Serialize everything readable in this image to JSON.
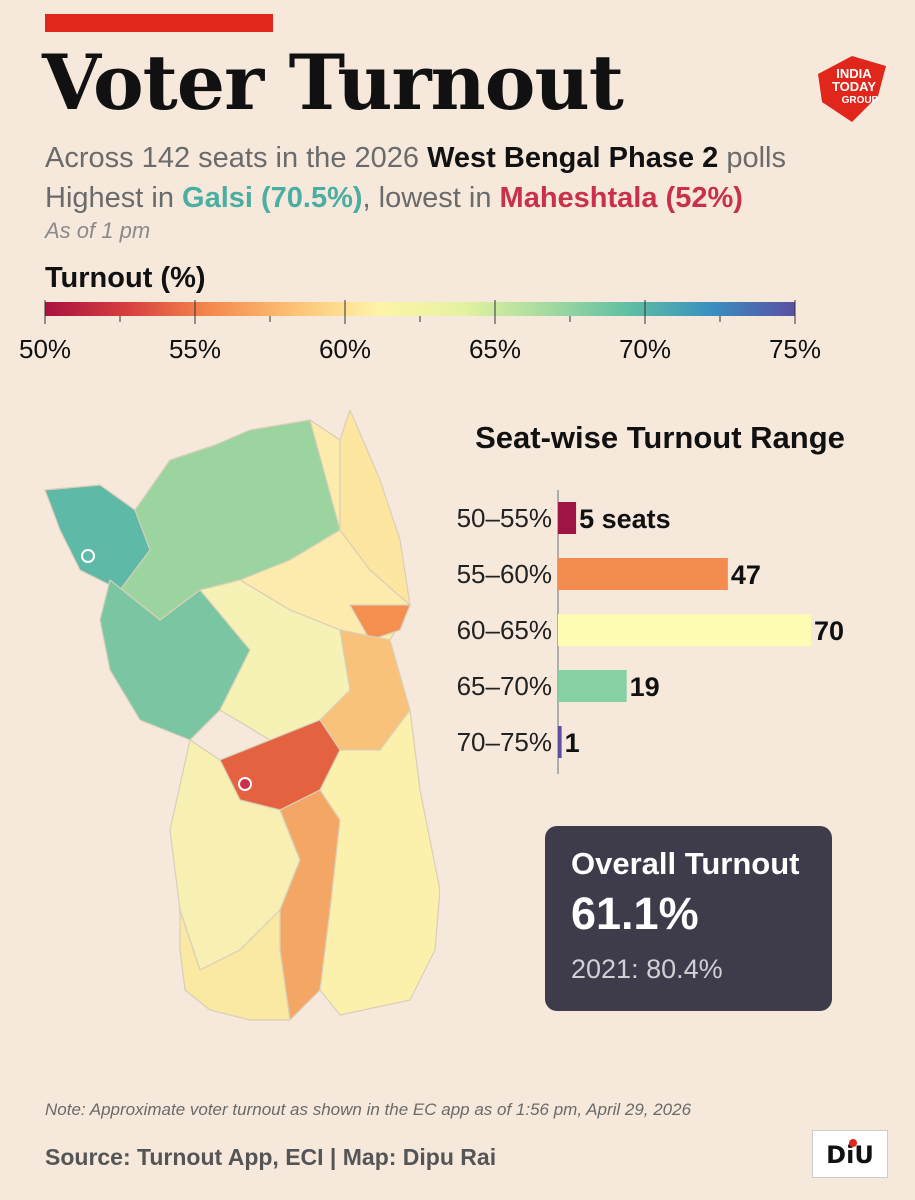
{
  "header": {
    "title": "Voter Turnout",
    "sub1_a": "Across 142 seats in the 2026 ",
    "sub1_b": "West Bengal Phase 2",
    "sub1_c": " polls",
    "sub2_a": "Highest in ",
    "sub2_b": "Galsi (70.5%)",
    "sub2_c": ", lowest in ",
    "sub2_d": "Maheshtala (52%)",
    "as_of": "As of 1 pm"
  },
  "logo": {
    "line1": "INDIA",
    "line2": "TODAY",
    "line3": "GROUP"
  },
  "legend": {
    "title": "Turnout (%)",
    "ticks": [
      "50%",
      "55%",
      "60%",
      "65%",
      "70%",
      "75%"
    ],
    "colors": [
      "#a8123f",
      "#d7403f",
      "#f58a4d",
      "#fdc275",
      "#fef4a8",
      "#e4f3a0",
      "#a6dba0",
      "#5fbfa3",
      "#3a8fc0",
      "#5a4fa2"
    ]
  },
  "chart_data": {
    "type": "bar",
    "title": "Seat-wise Turnout Range",
    "categories": [
      "50–55%",
      "55–60%",
      "60–65%",
      "65–70%",
      "70–75%"
    ],
    "values": [
      5,
      47,
      70,
      19,
      1
    ],
    "value_labels": [
      "5 seats",
      "47",
      "70",
      "19",
      "1"
    ],
    "colors": [
      "#9e1444",
      "#f58c4f",
      "#fefcb3",
      "#86d0a4",
      "#5e4fa2"
    ],
    "xlim": [
      0,
      70
    ]
  },
  "map": {
    "markers": [
      {
        "name": "Galsi",
        "color": "#5fbfa3"
      },
      {
        "name": "Maheshtala",
        "color": "#c9304a"
      }
    ]
  },
  "overall": {
    "label": "Overall Turnout",
    "value": "61.1%",
    "previous": "2021: 80.4%"
  },
  "footer": {
    "note": "Note: Approximate voter turnout as shown in the EC app as of 1:56 pm, April 29, 2026",
    "source": "Source: Turnout App, ECI  |  Map: Dipu Rai",
    "diu": "DiU"
  }
}
